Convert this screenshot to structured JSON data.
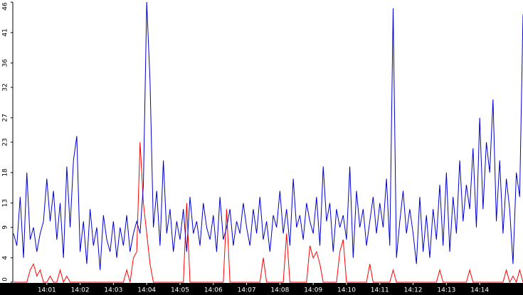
{
  "chart_data": {
    "type": "line",
    "categories": [
      null,
      null,
      null,
      null,
      null,
      null,
      null,
      null,
      null,
      null,
      "14:01",
      null,
      null,
      null,
      null,
      null,
      null,
      null,
      null,
      null,
      "14:02",
      null,
      null,
      null,
      null,
      null,
      null,
      null,
      null,
      null,
      "14:03",
      null,
      null,
      null,
      null,
      null,
      null,
      null,
      null,
      null,
      "14:04",
      null,
      null,
      null,
      null,
      null,
      null,
      null,
      null,
      null,
      "14:05",
      null,
      null,
      null,
      null,
      null,
      null,
      null,
      null,
      null,
      "14:06",
      null,
      null,
      null,
      null,
      null,
      null,
      null,
      null,
      null,
      "14:07",
      null,
      null,
      null,
      null,
      null,
      null,
      null,
      null,
      null,
      "14:08",
      null,
      null,
      null,
      null,
      null,
      null,
      null,
      null,
      null,
      "14:09",
      null,
      null,
      null,
      null,
      null,
      null,
      null,
      null,
      null,
      "14:10",
      null,
      null,
      null,
      null,
      null,
      null,
      null,
      null,
      null,
      "14:11",
      null,
      null,
      null,
      null,
      null,
      null,
      null,
      null,
      null,
      "14:12",
      null,
      null,
      null,
      null,
      null,
      null,
      null,
      null,
      null,
      "14:13",
      null,
      null,
      null,
      null,
      null,
      null,
      null,
      null,
      null,
      "14:14",
      null,
      null,
      null,
      null,
      null,
      null,
      null,
      null,
      null,
      null,
      null,
      null,
      null
    ],
    "series": [
      {
        "color": "#0000cc",
        "values": [
          8,
          6,
          14,
          4,
          18,
          7,
          9,
          5,
          8,
          10,
          17,
          10,
          15,
          7,
          13,
          4,
          19,
          9,
          20,
          24,
          5,
          10,
          3,
          12,
          6,
          9,
          2,
          11,
          7,
          5,
          10,
          4,
          9,
          6,
          11,
          5,
          8,
          10,
          8,
          16,
          46,
          33,
          9,
          15,
          6,
          20,
          8,
          12,
          5,
          10,
          7,
          12,
          5,
          14,
          8,
          10,
          6,
          13,
          9,
          7,
          11,
          5,
          14,
          7,
          9,
          12,
          6,
          10,
          8,
          13,
          9,
          6,
          12,
          8,
          14,
          7,
          10,
          5,
          11,
          9,
          15,
          8,
          12,
          6,
          17,
          9,
          11,
          7,
          13,
          10,
          8,
          14,
          6,
          19,
          10,
          13,
          5,
          12,
          9,
          11,
          7,
          19,
          4,
          15,
          9,
          12,
          6,
          10,
          14,
          8,
          13,
          9,
          17,
          6,
          45,
          4,
          10,
          15,
          8,
          12,
          8,
          3,
          14,
          5,
          11,
          4,
          12,
          7,
          16,
          6,
          18,
          5,
          14,
          8,
          20,
          10,
          16,
          12,
          22,
          9,
          27,
          12,
          23,
          18,
          30,
          10,
          20,
          8,
          17,
          12,
          3,
          18,
          14,
          44
        ]
      },
      {
        "color": "#ff0000",
        "values": [
          0,
          0,
          0,
          0,
          0,
          2,
          3,
          1,
          2,
          0,
          0,
          1,
          0,
          0,
          2,
          0,
          1,
          0,
          0,
          0,
          0,
          0,
          0,
          0,
          0,
          0,
          0,
          0,
          0,
          0,
          0,
          0,
          0,
          0,
          2,
          0,
          4,
          5,
          23,
          13,
          8,
          3,
          0,
          0,
          0,
          0,
          0,
          0,
          0,
          0,
          0,
          0,
          13,
          0,
          0,
          0,
          0,
          0,
          0,
          0,
          0,
          0,
          0,
          0,
          12,
          0,
          0,
          0,
          0,
          0,
          0,
          0,
          0,
          0,
          0,
          4,
          0,
          0,
          0,
          0,
          0,
          0,
          8,
          0,
          0,
          0,
          0,
          0,
          0,
          6,
          4,
          5,
          3,
          0,
          0,
          0,
          0,
          0,
          5,
          7,
          0,
          0,
          0,
          0,
          0,
          0,
          0,
          3,
          0,
          0,
          0,
          0,
          0,
          0,
          2,
          0,
          0,
          0,
          0,
          0,
          0,
          0,
          0,
          0,
          0,
          0,
          0,
          0,
          2,
          0,
          0,
          0,
          0,
          0,
          0,
          0,
          0,
          2,
          0,
          0,
          0,
          0,
          0,
          0,
          0,
          0,
          0,
          0,
          2,
          0,
          1,
          0,
          2,
          0
        ]
      }
    ],
    "ylim": [
      0,
      46
    ],
    "yticks": [
      0,
      4,
      9,
      13,
      18,
      23,
      27,
      32,
      36,
      41,
      46
    ]
  }
}
